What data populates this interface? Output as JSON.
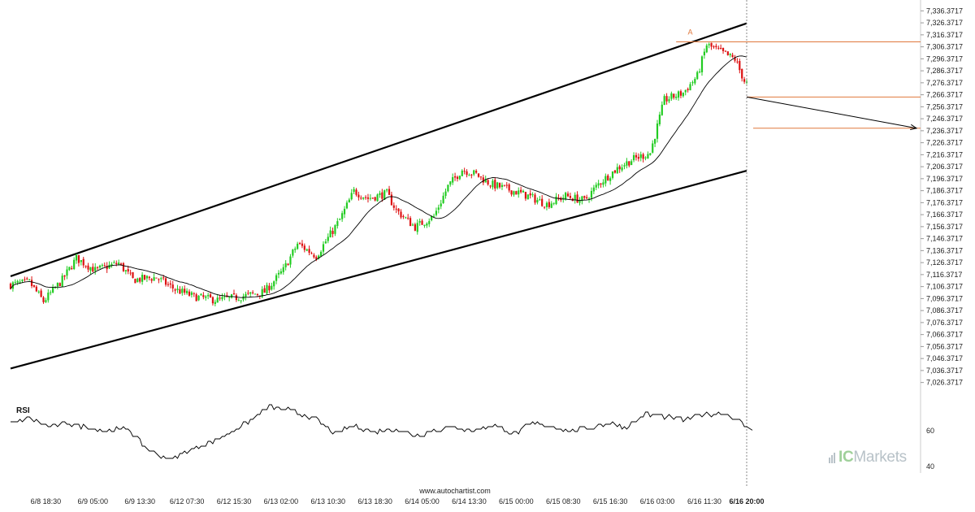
{
  "source_text": "www.autochartist.com",
  "brand": {
    "prefix": "IC",
    "suffix": "Markets"
  },
  "colors": {
    "up": "#22cc22",
    "down": "#dd1111",
    "level": "#e0783c",
    "ma": "#000000",
    "channel": "#000000",
    "grid": "#ffffff"
  },
  "chart_data": [
    {
      "type": "candlestick",
      "y_ticks": [
        "7,336.3717",
        "7,326.3717",
        "7,316.3717",
        "7,306.3717",
        "7,296.3717",
        "7,286.3717",
        "7,276.3717",
        "7,266.3717",
        "7,256.3717",
        "7,246.3717",
        "7,236.3717",
        "7,226.3717",
        "7,216.3717",
        "7,206.3717",
        "7,196.3717",
        "7,186.3717",
        "7,176.3717",
        "7,166.3717",
        "7,156.3717",
        "7,146.3717",
        "7,136.3717",
        "7,126.3717",
        "7,116.3717",
        "7,106.3717",
        "7,096.3717",
        "7,086.3717",
        "7,076.3717",
        "7,066.3717",
        "7,056.3717",
        "7,046.3717",
        "7,036.3717",
        "7,026.3717"
      ],
      "ylim": [
        7018,
        7340
      ],
      "x_ticks": [
        "6/8 18:30",
        "6/9 05:00",
        "6/9 13:30",
        "6/12 07:30",
        "6/12 15:30",
        "6/13 02:00",
        "6/13 10:30",
        "6/13 18:30",
        "6/14 05:00",
        "6/14 13:30",
        "6/15 00:00",
        "6/15 08:30",
        "6/15 16:30",
        "6/16 03:00",
        "6/16 11:30",
        "6/16 20:00"
      ],
      "x_tick_index": [
        15,
        35,
        55,
        75,
        95,
        115,
        135,
        155,
        175,
        195,
        215,
        235,
        255,
        275,
        295,
        313
      ],
      "bar_count": 314,
      "path_anchors": [
        [
          0,
          7108
        ],
        [
          8,
          7110
        ],
        [
          14,
          7094
        ],
        [
          22,
          7112
        ],
        [
          28,
          7130
        ],
        [
          36,
          7120
        ],
        [
          46,
          7126
        ],
        [
          52,
          7112
        ],
        [
          62,
          7114
        ],
        [
          70,
          7104
        ],
        [
          78,
          7098
        ],
        [
          88,
          7095
        ],
        [
          98,
          7098
        ],
        [
          108,
          7102
        ],
        [
          116,
          7120
        ],
        [
          122,
          7142
        ],
        [
          130,
          7132
        ],
        [
          136,
          7150
        ],
        [
          140,
          7162
        ],
        [
          146,
          7186
        ],
        [
          152,
          7180
        ],
        [
          160,
          7184
        ],
        [
          164,
          7170
        ],
        [
          172,
          7156
        ],
        [
          180,
          7165
        ],
        [
          186,
          7190
        ],
        [
          192,
          7204
        ],
        [
          198,
          7200
        ],
        [
          204,
          7192
        ],
        [
          214,
          7186
        ],
        [
          220,
          7182
        ],
        [
          228,
          7175
        ],
        [
          236,
          7182
        ],
        [
          244,
          7178
        ],
        [
          250,
          7192
        ],
        [
          258,
          7205
        ],
        [
          264,
          7212
        ],
        [
          272,
          7218
        ],
        [
          278,
          7262
        ],
        [
          286,
          7268
        ],
        [
          292,
          7282
        ],
        [
          296,
          7308
        ],
        [
          302,
          7302
        ],
        [
          308,
          7296
        ],
        [
          312,
          7278
        ],
        [
          313,
          7276
        ]
      ],
      "noise_seed": 7,
      "channel": {
        "upper": [
          [
            0,
            7115
          ],
          [
            313,
            7326
          ]
        ],
        "lower": [
          [
            0,
            7038
          ],
          [
            313,
            7203
          ]
        ]
      },
      "levels": [
        7310.5,
        7264.5,
        7238.5
      ],
      "projection": [
        [
          313,
          7264.5
        ],
        [
          327,
          7238.5
        ]
      ],
      "pattern_label": "A",
      "pattern_label_at": [
        289,
        7316.5
      ],
      "current_bar": 313
    },
    {
      "type": "line",
      "title": "RSI",
      "ticks": [
        "60",
        "40"
      ],
      "tick_values": [
        60,
        40
      ],
      "ylim": [
        35,
        78
      ],
      "anchors": [
        [
          0,
          64
        ],
        [
          8,
          67
        ],
        [
          16,
          62
        ],
        [
          24,
          64
        ],
        [
          32,
          62
        ],
        [
          40,
          60
        ],
        [
          50,
          61
        ],
        [
          56,
          52
        ],
        [
          62,
          47
        ],
        [
          68,
          44
        ],
        [
          76,
          49
        ],
        [
          84,
          53
        ],
        [
          92,
          58
        ],
        [
          100,
          64
        ],
        [
          110,
          73
        ],
        [
          120,
          71
        ],
        [
          130,
          66
        ],
        [
          138,
          58
        ],
        [
          146,
          63
        ],
        [
          154,
          59
        ],
        [
          164,
          61
        ],
        [
          172,
          57
        ],
        [
          180,
          60
        ],
        [
          188,
          62
        ],
        [
          196,
          60
        ],
        [
          206,
          63
        ],
        [
          214,
          58
        ],
        [
          222,
          64
        ],
        [
          230,
          62
        ],
        [
          238,
          60
        ],
        [
          246,
          61
        ],
        [
          254,
          64
        ],
        [
          262,
          62
        ],
        [
          270,
          69
        ],
        [
          278,
          68
        ],
        [
          286,
          66
        ],
        [
          294,
          69
        ],
        [
          302,
          70
        ],
        [
          308,
          67
        ],
        [
          313,
          62
        ]
      ]
    }
  ]
}
